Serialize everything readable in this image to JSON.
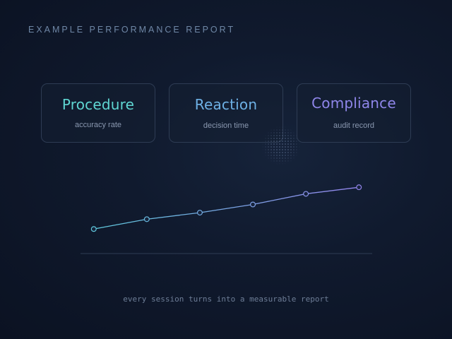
{
  "header": {
    "title": "EXAMPLE PERFORMANCE REPORT"
  },
  "cards": [
    {
      "title": "Procedure",
      "subtitle": "accuracy rate",
      "color": "#5fd6d2"
    },
    {
      "title": "Reaction",
      "subtitle": "decision time",
      "color": "#6eb1e6"
    },
    {
      "title": "Compliance",
      "subtitle": "audit record",
      "color": "#8f86ea"
    }
  ],
  "chart_data": {
    "type": "line",
    "x": [
      1,
      2,
      3,
      4,
      5,
      6
    ],
    "series": [
      {
        "values": [
          1.0,
          2.2,
          3.0,
          4.0,
          5.3,
          6.1
        ]
      }
    ],
    "xlim": [
      0.75,
      6.25
    ],
    "ylim": [
      -2.0,
      10.0
    ],
    "grid": false,
    "colors": {
      "line_start": "#5fc8dc",
      "line_end": "#9283ea",
      "axis": "#2e3c54",
      "marker_fill": "#16223a"
    }
  },
  "footer": {
    "text": "every session turns into a measurable report"
  }
}
